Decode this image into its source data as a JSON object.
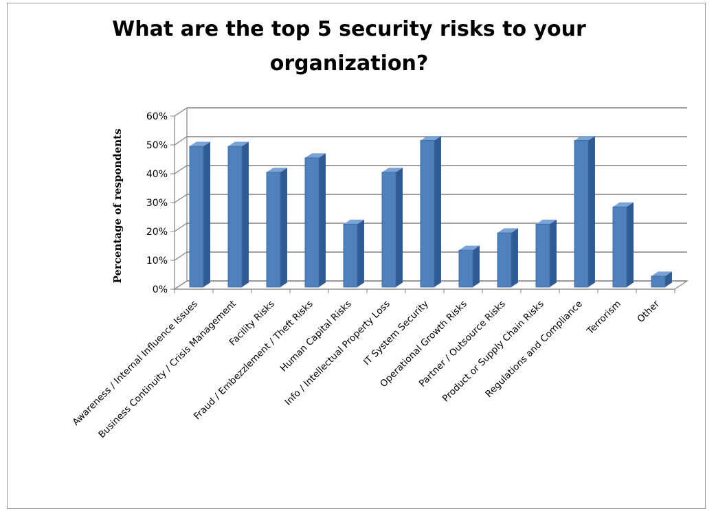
{
  "chart_data": {
    "type": "bar",
    "title": "What are the top 5 security risks to your organization?",
    "xlabel": "",
    "ylabel": "Percentage of respondents",
    "ylim": [
      0,
      60
    ],
    "yticks": [
      "0%",
      "10%",
      "20%",
      "30%",
      "40%",
      "50%",
      "60%"
    ],
    "categories": [
      "Awareness / Internal Influence Issues",
      "Business Continuity / Crisis Management",
      "Facility Risks",
      "Fraud / Embezzlement / Theft Risks",
      "Human Capital Risks",
      "Info / Intellectual Property Loss",
      "IT System Security",
      "Operational Growth Risks",
      "Partner / Outsource Risks",
      "Product or Supply Chain Risks",
      "Regulations and Compliance",
      "Terrorism",
      "Other"
    ],
    "values": [
      50,
      50,
      41,
      46,
      23,
      41,
      52,
      14,
      20,
      23,
      52,
      29,
      5
    ],
    "grid": true,
    "legend": "none",
    "colors": {
      "bar_front": "#4f81bd",
      "bar_side": "#2f5a92",
      "bar_top": "#7aa3d6",
      "grid": "#808080"
    }
  }
}
